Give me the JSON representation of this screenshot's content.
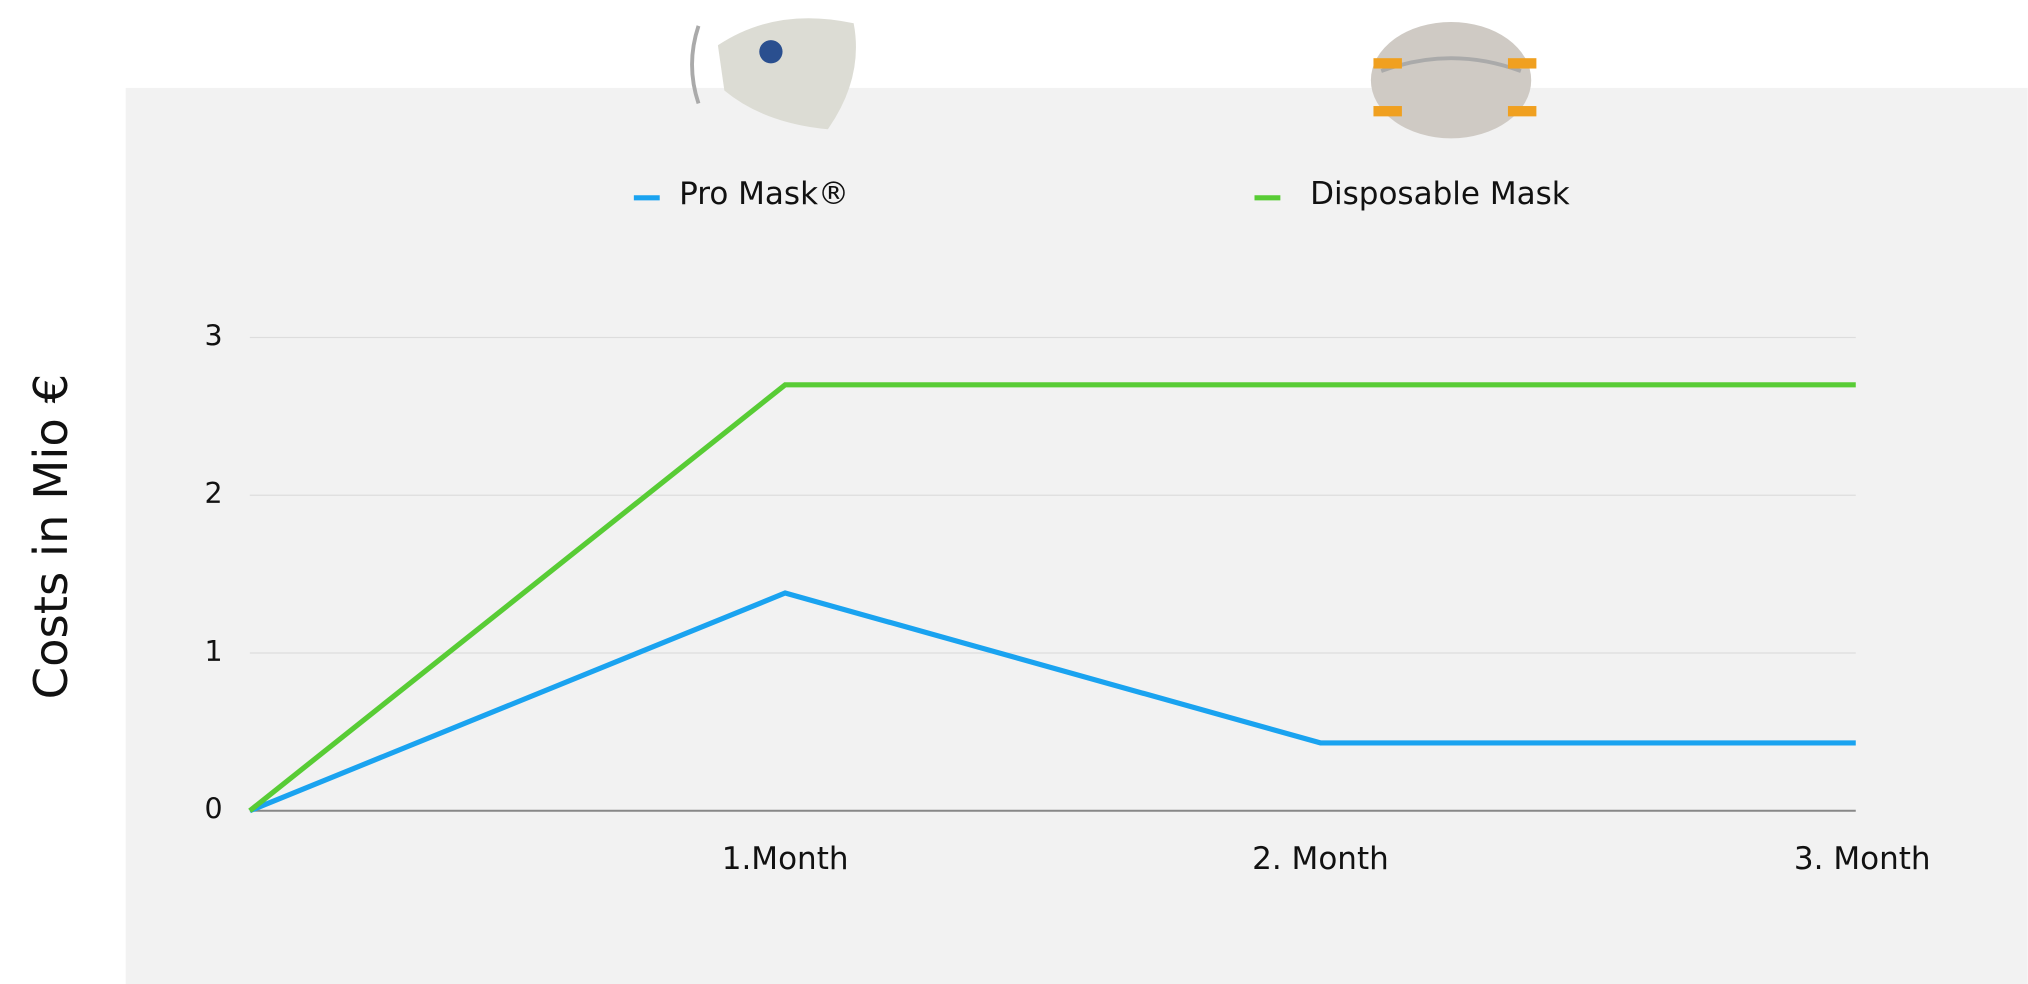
{
  "chart_data": {
    "type": "line",
    "y_label": "Costs in Mio €",
    "categories": [
      null,
      "1.Month",
      "2. Month",
      "3. Month"
    ],
    "series": [
      {
        "name": "Pro Mask®",
        "color": "#1aa3f0",
        "values": [
          0,
          1.38,
          0.43,
          0.43
        ]
      },
      {
        "name": "Disposable Mask",
        "color": "#58cc35",
        "values": [
          0,
          2.7,
          2.7,
          2.7
        ]
      }
    ],
    "ylim": [
      0,
      3
    ],
    "yticks": [
      0,
      1,
      2,
      3
    ],
    "grid": true
  }
}
